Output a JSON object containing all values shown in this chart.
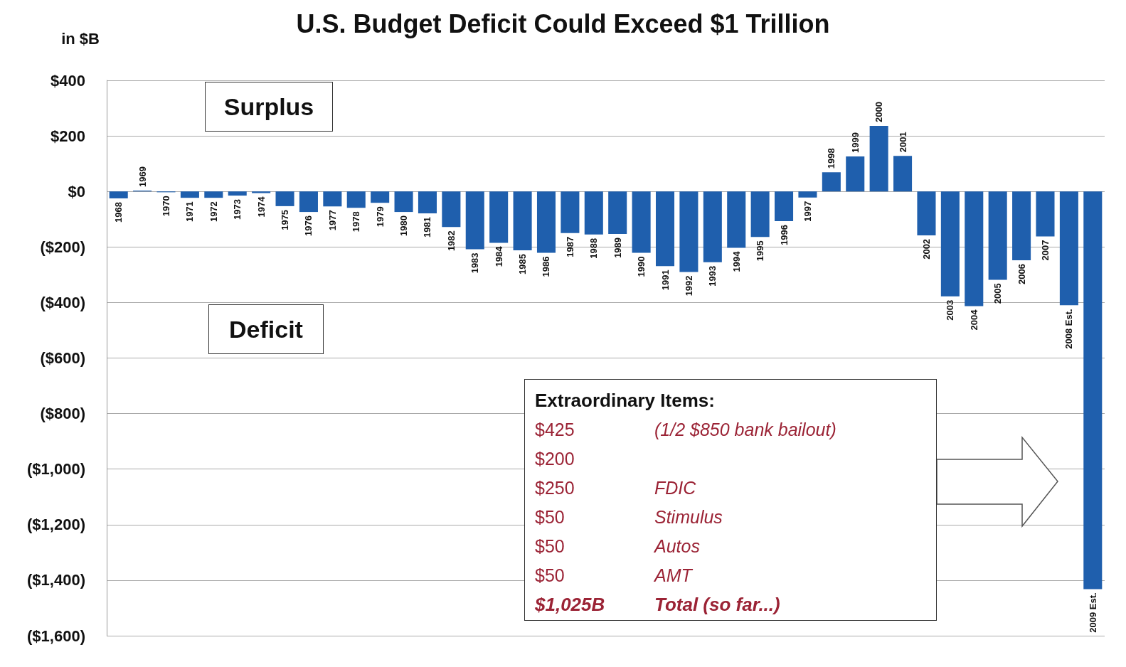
{
  "chart_data": {
    "type": "bar",
    "title": "U.S. Budget Deficit Could Exceed $1 Trillion",
    "ylabel": "in $B",
    "categories": [
      "1968",
      "1969",
      "1970",
      "1971",
      "1972",
      "1973",
      "1974",
      "1975",
      "1976",
      "1977",
      "1978",
      "1979",
      "1980",
      "1981",
      "1982",
      "1983",
      "1984",
      "1985",
      "1986",
      "1987",
      "1988",
      "1989",
      "1990",
      "1991",
      "1992",
      "1993",
      "1994",
      "1995",
      "1996",
      "1997",
      "1998",
      "1999",
      "2000",
      "2001",
      "2002",
      "2003",
      "2004",
      "2005",
      "2006",
      "2007",
      "2008 Est.",
      "2009 Est."
    ],
    "values": [
      -25,
      3,
      -3,
      -23,
      -23,
      -15,
      -6,
      -53,
      -74,
      -54,
      -59,
      -41,
      -74,
      -79,
      -128,
      -208,
      -185,
      -212,
      -221,
      -150,
      -155,
      -153,
      -221,
      -269,
      -290,
      -255,
      -203,
      -164,
      -107,
      -22,
      69,
      126,
      236,
      128,
      -158,
      -378,
      -413,
      -318,
      -248,
      -162,
      -410,
      -1432
    ],
    "color": "#1f5fad",
    "ylim": [
      -1600,
      400
    ],
    "yticks": [
      {
        "value": -1600,
        "label": "($1,600)"
      },
      {
        "value": -1400,
        "label": "($1,400)"
      },
      {
        "value": -1200,
        "label": "($1,200)"
      },
      {
        "value": -1000,
        "label": "($1,000)"
      },
      {
        "value": -800,
        "label": "($800)"
      },
      {
        "value": -600,
        "label": "($600)"
      },
      {
        "value": -400,
        "label": "($400)"
      },
      {
        "value": -200,
        "label": "($200)"
      },
      {
        "value": 0,
        "label": "$0"
      },
      {
        "value": 200,
        "label": "$200"
      },
      {
        "value": 400,
        "label": "$400"
      }
    ],
    "grid": "y",
    "annotations": [
      "Surplus",
      "Deficit",
      "Extraordinary Items:",
      "$425",
      "(1/2 $850 bank bailout)",
      "$200",
      null,
      "$250",
      "FDIC",
      "$50",
      "Stimulus",
      "$50",
      "Autos",
      "$50",
      "AMT",
      "$1,025B",
      "Total (so far...)"
    ]
  }
}
